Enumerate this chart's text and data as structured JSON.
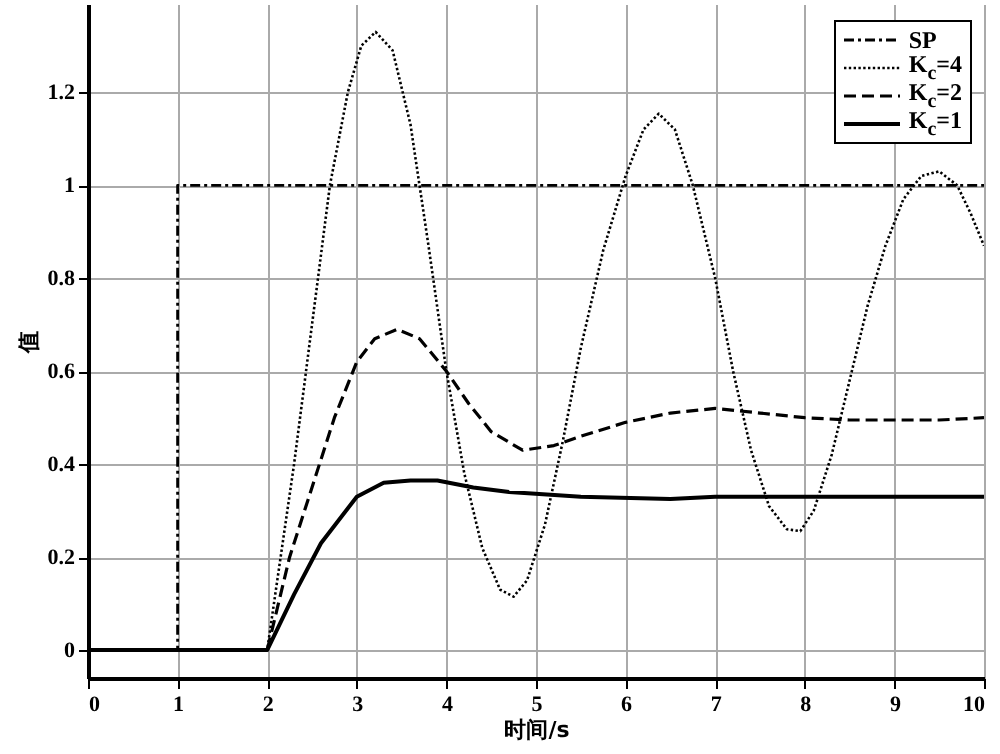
{
  "chart_data": {
    "type": "line",
    "xlabel": "时间/s",
    "ylabel": "值",
    "xlim": [
      0,
      10
    ],
    "xticks": [
      0,
      1,
      2,
      3,
      4,
      5,
      6,
      7,
      8,
      9,
      10
    ],
    "ylim": [
      -0.06,
      1.39
    ],
    "yticks": [
      0,
      0.2,
      0.4,
      0.6,
      0.8,
      1,
      1.2
    ],
    "grid": true,
    "legend": "top right",
    "marker": "none",
    "series": [
      {
        "name": "SP",
        "color": "#000000",
        "line_style": "dashdot",
        "x": [
          0,
          1,
          1,
          10
        ],
        "values": [
          0,
          0,
          1,
          1
        ]
      },
      {
        "name": "K$_{c}$=4",
        "color": "#000000",
        "line_style": "dotted",
        "x": [
          0,
          2,
          2.3,
          2.5,
          2.7,
          2.9,
          3.05,
          3.21,
          3.4,
          3.6,
          3.8,
          4.0,
          4.2,
          4.4,
          4.6,
          4.75,
          4.9,
          5.1,
          5.3,
          5.5,
          5.75,
          6.0,
          6.2,
          6.37,
          6.55,
          6.75,
          7.0,
          7.2,
          7.4,
          7.6,
          7.8,
          7.95,
          8.1,
          8.3,
          8.5,
          8.7,
          8.9,
          9.1,
          9.3,
          9.5,
          9.7,
          9.85,
          10
        ],
        "values": [
          0,
          0,
          0.4,
          0.7,
          1.0,
          1.2,
          1.3,
          1.33,
          1.29,
          1.13,
          0.87,
          0.6,
          0.38,
          0.22,
          0.13,
          0.115,
          0.15,
          0.27,
          0.45,
          0.65,
          0.86,
          1.02,
          1.12,
          1.154,
          1.12,
          1.0,
          0.8,
          0.6,
          0.43,
          0.31,
          0.26,
          0.256,
          0.3,
          0.42,
          0.58,
          0.74,
          0.87,
          0.97,
          1.02,
          1.03,
          1.0,
          0.94,
          0.87
        ]
      },
      {
        "name": "K$_{c}$=2",
        "color": "#000000",
        "line_style": "dashed",
        "x": [
          0,
          2,
          2.25,
          2.5,
          2.75,
          3.0,
          3.2,
          3.45,
          3.7,
          4.0,
          4.25,
          4.5,
          4.85,
          5.2,
          5.5,
          6.0,
          6.5,
          7.0,
          7.5,
          8.0,
          8.5,
          9.0,
          9.5,
          10
        ],
        "values": [
          0,
          0,
          0.2,
          0.35,
          0.5,
          0.62,
          0.67,
          0.69,
          0.67,
          0.6,
          0.53,
          0.47,
          0.43,
          0.44,
          0.46,
          0.49,
          0.51,
          0.52,
          0.51,
          0.5,
          0.495,
          0.495,
          0.495,
          0.5
        ]
      },
      {
        "name": "K$_{c}$=1",
        "color": "#000000",
        "line_style": "solid",
        "x": [
          0,
          2,
          2.3,
          2.6,
          3.0,
          3.3,
          3.6,
          3.9,
          4.3,
          4.7,
          5.5,
          6.5,
          7.0,
          8.0,
          9.0,
          10
        ],
        "values": [
          0,
          0,
          0.12,
          0.23,
          0.33,
          0.36,
          0.365,
          0.365,
          0.35,
          0.34,
          0.33,
          0.325,
          0.33,
          0.33,
          0.33,
          0.33
        ]
      }
    ]
  }
}
